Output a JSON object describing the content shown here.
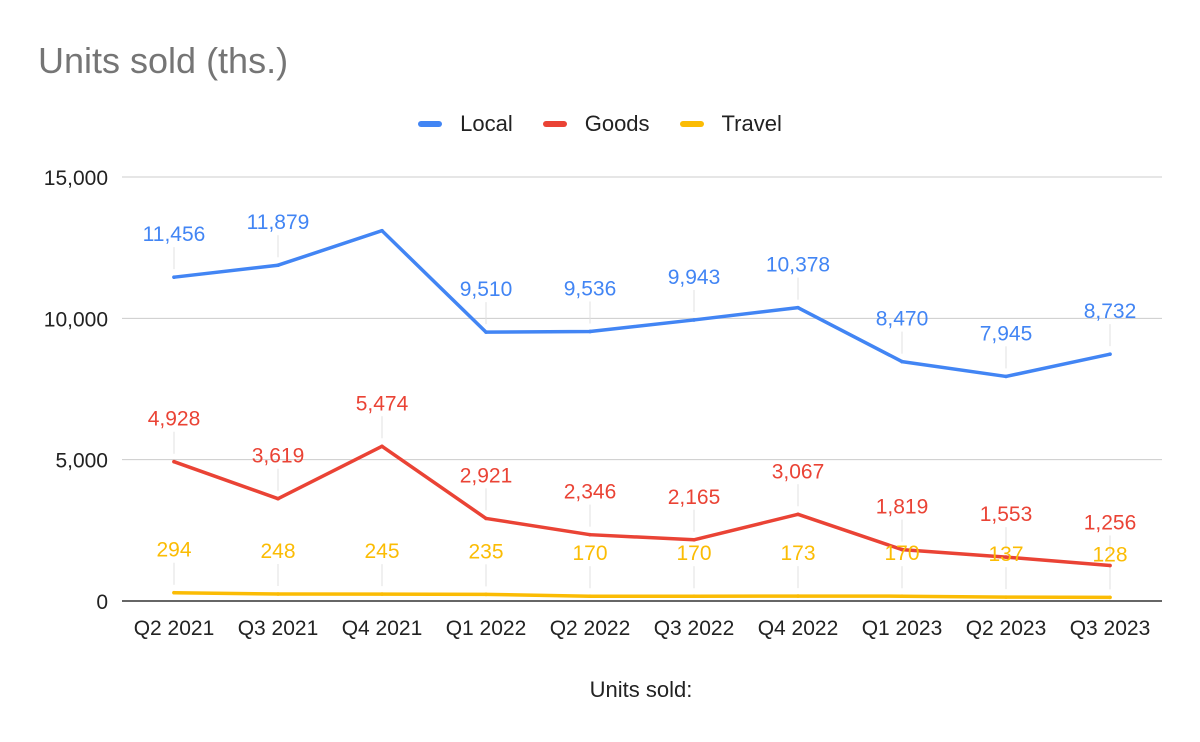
{
  "chart_data": {
    "type": "line",
    "title": "Units sold (ths.)",
    "xlabel": "Units sold:",
    "ylabel": "",
    "categories": [
      "Q2 2021",
      "Q3 2021",
      "Q4 2021",
      "Q1 2022",
      "Q2 2022",
      "Q3 2022",
      "Q4 2022",
      "Q1 2023",
      "Q2 2023",
      "Q3 2023"
    ],
    "ylim": [
      0,
      15000
    ],
    "yticks": [
      "0",
      "5,000",
      "10,000",
      "15,000"
    ],
    "ytick_values": [
      0,
      5000,
      10000,
      15000
    ],
    "grid": true,
    "legend_position": "top",
    "series": [
      {
        "name": "Local",
        "color": "#4285f4",
        "values": [
          11456,
          11879,
          13100,
          9510,
          9536,
          9943,
          10378,
          8470,
          7945,
          8732
        ],
        "labels": [
          "11,456",
          "11,879",
          "",
          "9,510",
          "9,536",
          "9,943",
          "10,378",
          "8,470",
          "7,945",
          "8,732"
        ]
      },
      {
        "name": "Goods",
        "color": "#ea4335",
        "values": [
          4928,
          3619,
          5474,
          2921,
          2346,
          2165,
          3067,
          1819,
          1553,
          1256
        ],
        "labels": [
          "4,928",
          "3,619",
          "5,474",
          "2,921",
          "2,346",
          "2,165",
          "3,067",
          "1,819",
          "1,553",
          "1,256"
        ]
      },
      {
        "name": "Travel",
        "color": "#fbbc04",
        "values": [
          294,
          248,
          245,
          235,
          170,
          170,
          173,
          170,
          137,
          128
        ],
        "labels": [
          "294",
          "248",
          "245",
          "235",
          "170",
          "170",
          "173",
          "170",
          "137",
          "128"
        ]
      }
    ]
  }
}
